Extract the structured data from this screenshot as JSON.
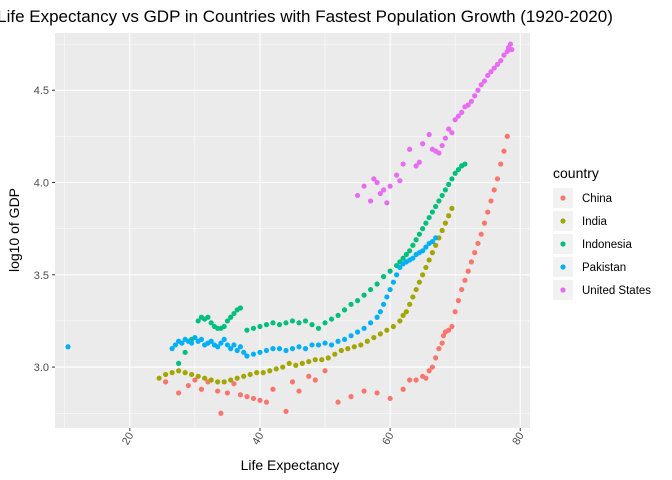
{
  "chart_data": {
    "type": "scatter",
    "title": "Life Expectancy vs GDP in Countries with Fastest Population Growth (1920-2020)",
    "xlabel": "Life Expectancy",
    "ylabel": "log10 of GDP",
    "xlim": [
      8.5,
      81.5
    ],
    "ylim": [
      2.67,
      4.81
    ],
    "x_ticks": [
      20,
      40,
      60,
      80
    ],
    "y_ticks": [
      3.0,
      3.5,
      4.0,
      4.5
    ],
    "x_tick_labels": [
      "20",
      "40",
      "60",
      "80"
    ],
    "y_tick_labels": [
      "3.0",
      "3.5",
      "4.0",
      "4.5"
    ],
    "x_tick_rotation": -60,
    "grid": true,
    "legend_position": "right",
    "legend_title": "country",
    "colors": {
      "China": "#F8766D",
      "India": "#A3A500",
      "Indonesia": "#00BF7D",
      "Pakistan": "#00B0F6",
      "United States": "#E76BF3"
    },
    "panel_background": "#EBEBEB",
    "series": [
      {
        "name": "China",
        "x": [
          25.5,
          27.5,
          29.0,
          30.0,
          31.0,
          32.0,
          33.5,
          34.0,
          35.0,
          36.0,
          37.0,
          38.0,
          39.0,
          40.0,
          41.0,
          42.0,
          44.0,
          45.0,
          46.0,
          47.5,
          48.5,
          50.0,
          52.0,
          54.0,
          56.0,
          58.0,
          60.0,
          62.0,
          63.0,
          64.0,
          65.0,
          65.5,
          66.0,
          66.5,
          67.0,
          67.5,
          68.0,
          68.2,
          68.5,
          69.0,
          69.5,
          70.0,
          70.5,
          71.0,
          71.5,
          72.0,
          72.5,
          73.0,
          73.5,
          74.0,
          74.5,
          75.0,
          75.5,
          76.0,
          76.5,
          77.0,
          77.5,
          78.0
        ],
        "y": [
          2.92,
          2.86,
          2.9,
          2.93,
          2.88,
          2.92,
          2.87,
          2.75,
          2.86,
          2.91,
          2.85,
          2.84,
          2.83,
          2.82,
          2.81,
          2.88,
          2.76,
          2.92,
          2.87,
          2.95,
          2.93,
          2.98,
          2.81,
          2.84,
          2.87,
          2.86,
          2.83,
          2.88,
          2.93,
          2.93,
          2.95,
          2.94,
          2.98,
          3.0,
          3.05,
          3.1,
          3.13,
          3.17,
          3.19,
          3.2,
          3.22,
          3.3,
          3.36,
          3.42,
          3.47,
          3.52,
          3.57,
          3.62,
          3.67,
          3.72,
          3.78,
          3.84,
          3.9,
          3.96,
          4.02,
          4.1,
          4.17,
          4.25
        ]
      },
      {
        "name": "India",
        "x": [
          24.5,
          25.5,
          26.5,
          27.5,
          28.5,
          29.5,
          30.5,
          31.5,
          32.5,
          33.5,
          34.5,
          35.5,
          36.5,
          37.5,
          38.5,
          39.5,
          40.5,
          41.5,
          42.5,
          43.5,
          44.5,
          45.5,
          46.5,
          47.5,
          48.5,
          49.5,
          50.5,
          51.5,
          52.5,
          53.5,
          54.5,
          55.5,
          56.5,
          57.5,
          58.5,
          59.5,
          60.5,
          61.5,
          62.0,
          62.5,
          63.0,
          63.5,
          64.0,
          64.5,
          65.0,
          65.5,
          66.0,
          66.5,
          67.0,
          67.5,
          68.0,
          68.5,
          69.0,
          69.5
        ],
        "y": [
          2.94,
          2.96,
          2.97,
          2.98,
          2.97,
          2.96,
          2.95,
          2.94,
          2.93,
          2.92,
          2.92,
          2.93,
          2.94,
          2.95,
          2.96,
          2.97,
          2.97,
          2.98,
          2.99,
          3.0,
          3.02,
          3.01,
          3.02,
          3.03,
          3.04,
          3.04,
          3.05,
          3.07,
          3.09,
          3.1,
          3.11,
          3.12,
          3.14,
          3.16,
          3.18,
          3.2,
          3.22,
          3.25,
          3.28,
          3.3,
          3.34,
          3.38,
          3.42,
          3.46,
          3.5,
          3.54,
          3.58,
          3.62,
          3.66,
          3.7,
          3.74,
          3.78,
          3.82,
          3.86
        ]
      },
      {
        "name": "Indonesia",
        "x": [
          27.5,
          28.5,
          29.5,
          30.5,
          31.0,
          31.5,
          32.0,
          32.5,
          33.0,
          33.5,
          34.0,
          34.5,
          35.0,
          35.5,
          36.0,
          36.5,
          37.0,
          38.0,
          39.0,
          40.0,
          41.0,
          42.0,
          43.0,
          44.0,
          45.0,
          46.0,
          47.0,
          48.0,
          49.0,
          50.0,
          51.0,
          52.0,
          53.0,
          54.0,
          55.0,
          56.0,
          57.0,
          58.0,
          59.0,
          60.0,
          61.0,
          61.5,
          62.0,
          62.5,
          63.0,
          63.5,
          64.0,
          64.5,
          65.0,
          65.5,
          66.0,
          66.5,
          67.0,
          67.5,
          68.0,
          68.5,
          69.0,
          69.5,
          70.0,
          70.5,
          71.0,
          71.5
        ],
        "y": [
          3.02,
          3.08,
          3.15,
          3.25,
          3.27,
          3.26,
          3.27,
          3.24,
          3.22,
          3.21,
          3.21,
          3.22,
          3.25,
          3.27,
          3.29,
          3.31,
          3.32,
          3.2,
          3.21,
          3.22,
          3.23,
          3.24,
          3.23,
          3.24,
          3.25,
          3.24,
          3.25,
          3.23,
          3.21,
          3.24,
          3.26,
          3.28,
          3.31,
          3.34,
          3.36,
          3.39,
          3.42,
          3.45,
          3.49,
          3.52,
          3.55,
          3.57,
          3.59,
          3.61,
          3.63,
          3.66,
          3.69,
          3.72,
          3.75,
          3.78,
          3.81,
          3.84,
          3.87,
          3.9,
          3.93,
          3.96,
          3.99,
          4.02,
          4.05,
          4.07,
          4.09,
          4.1
        ]
      },
      {
        "name": "Pakistan",
        "x": [
          10.5,
          26.5,
          27.0,
          27.5,
          28.0,
          28.5,
          29.0,
          29.5,
          30.0,
          30.5,
          31.0,
          31.5,
          32.0,
          32.5,
          33.0,
          33.5,
          34.0,
          34.5,
          35.0,
          35.5,
          36.0,
          36.5,
          37.0,
          37.5,
          38.0,
          39.0,
          40.0,
          41.0,
          42.0,
          43.0,
          44.0,
          45.0,
          46.0,
          47.0,
          48.0,
          49.0,
          50.0,
          51.0,
          52.0,
          53.0,
          54.0,
          55.0,
          56.0,
          57.0,
          58.0,
          58.5,
          59.0,
          59.5,
          60.0,
          60.5,
          61.0,
          61.5,
          62.0,
          62.5,
          63.0,
          63.5,
          64.0,
          64.5,
          65.0,
          65.5,
          66.0,
          66.5,
          67.0
        ],
        "y": [
          3.11,
          3.1,
          3.12,
          3.14,
          3.13,
          3.15,
          3.14,
          3.13,
          3.16,
          3.14,
          3.15,
          3.12,
          3.13,
          3.14,
          3.12,
          3.11,
          3.13,
          3.15,
          3.12,
          3.1,
          3.12,
          3.09,
          3.11,
          3.08,
          3.06,
          3.07,
          3.08,
          3.09,
          3.1,
          3.1,
          3.09,
          3.1,
          3.11,
          3.1,
          3.12,
          3.12,
          3.13,
          3.12,
          3.14,
          3.15,
          3.17,
          3.19,
          3.21,
          3.24,
          3.27,
          3.3,
          3.34,
          3.38,
          3.42,
          3.46,
          3.5,
          3.54,
          3.56,
          3.57,
          3.58,
          3.59,
          3.61,
          3.62,
          3.63,
          3.65,
          3.67,
          3.68,
          3.7
        ]
      },
      {
        "name": "United States",
        "x": [
          55.0,
          56.0,
          57.0,
          57.5,
          58.0,
          58.5,
          59.0,
          59.5,
          60.0,
          61.0,
          61.5,
          62.0,
          63.0,
          64.0,
          64.5,
          65.0,
          66.0,
          66.5,
          67.0,
          67.5,
          68.0,
          68.5,
          69.0,
          69.5,
          70.0,
          70.5,
          71.0,
          71.5,
          72.0,
          72.5,
          73.0,
          73.5,
          74.0,
          74.5,
          75.0,
          75.5,
          76.0,
          76.5,
          77.0,
          77.5,
          78.0,
          78.2,
          78.5,
          78.7
        ],
        "y": [
          3.93,
          3.98,
          3.9,
          4.02,
          4.0,
          3.94,
          3.96,
          3.89,
          3.98,
          4.04,
          4.01,
          4.1,
          4.18,
          4.09,
          4.11,
          4.21,
          4.26,
          4.18,
          4.17,
          4.16,
          4.2,
          4.24,
          4.29,
          4.27,
          4.34,
          4.36,
          4.38,
          4.41,
          4.42,
          4.44,
          4.47,
          4.5,
          4.53,
          4.55,
          4.58,
          4.6,
          4.62,
          4.64,
          4.66,
          4.69,
          4.71,
          4.73,
          4.75,
          4.72
        ]
      }
    ]
  }
}
